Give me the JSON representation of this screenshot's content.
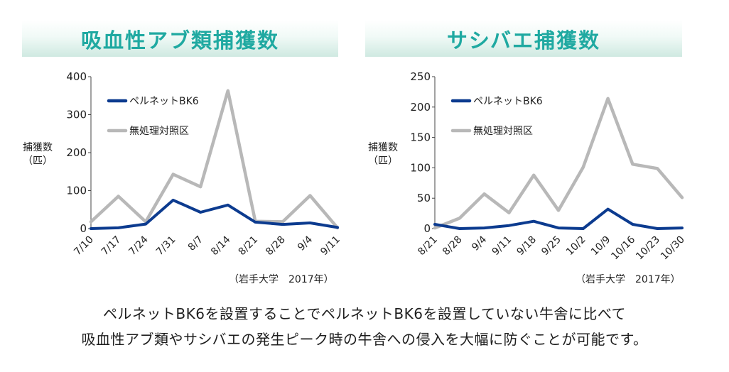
{
  "charts": [
    {
      "banner_title": "吸血性アブ類捕獲数",
      "ylabel_line1": "捕獲数",
      "ylabel_line2": "（匹）",
      "credit": "（岩手大学　2017年）",
      "colors": {
        "bk6": "#0c3b8f",
        "control": "#b8b8b8",
        "title": "#1fa9a1"
      }
    },
    {
      "banner_title": "サシバエ捕獲数",
      "ylabel_line1": "捕獲数",
      "ylabel_line2": "（匹）",
      "credit": "（岩手大学　2017年）",
      "colors": {
        "bk6": "#0c3b8f",
        "control": "#b8b8b8",
        "title": "#1fa9a1"
      }
    }
  ],
  "caption_line1": "ペルネットBK6を設置することでペルネットBK6を設置していない牛舎に比べて",
  "caption_line2": "吸血性アブ類やサシバエの発生ピーク時の牛舎への侵入を大幅に防ぐことが可能です。",
  "chart_data": [
    {
      "type": "line",
      "title": "吸血性アブ類捕獲数",
      "ylabel": "捕獲数（匹）",
      "xlabel": "",
      "categories": [
        "7/10",
        "7/17",
        "7/24",
        "7/31",
        "8/7",
        "8/14",
        "8/21",
        "8/28",
        "9/4",
        "9/11"
      ],
      "ylim": [
        0,
        400
      ],
      "yticks": [
        0,
        100,
        200,
        300,
        400
      ],
      "series": [
        {
          "name": "ペルネットBK6",
          "color": "#0c3b8f",
          "values": [
            0,
            2,
            12,
            75,
            43,
            62,
            17,
            11,
            15,
            3
          ]
        },
        {
          "name": "無処理対照区",
          "color": "#b8b8b8",
          "values": [
            18,
            85,
            18,
            143,
            110,
            363,
            19,
            18,
            87,
            2
          ]
        }
      ],
      "legend": "top-left",
      "grid": false
    },
    {
      "type": "line",
      "title": "サシバエ捕獲数",
      "ylabel": "捕獲数（匹）",
      "xlabel": "",
      "categories": [
        "8/21",
        "8/28",
        "9/4",
        "9/11",
        "9/18",
        "9/25",
        "10/2",
        "10/9",
        "10/16",
        "10/23",
        "10/30"
      ],
      "ylim": [
        0,
        250
      ],
      "yticks": [
        0,
        50,
        100,
        150,
        200,
        250
      ],
      "series": [
        {
          "name": "ペルネットBK6",
          "color": "#0c3b8f",
          "values": [
            7,
            0,
            1,
            5,
            12,
            1,
            0,
            32,
            7,
            0,
            1
          ]
        },
        {
          "name": "無処理対照区",
          "color": "#b8b8b8",
          "values": [
            1,
            17,
            57,
            26,
            88,
            30,
            101,
            214,
            106,
            99,
            51
          ]
        }
      ],
      "legend": "top-left",
      "grid": false
    }
  ]
}
